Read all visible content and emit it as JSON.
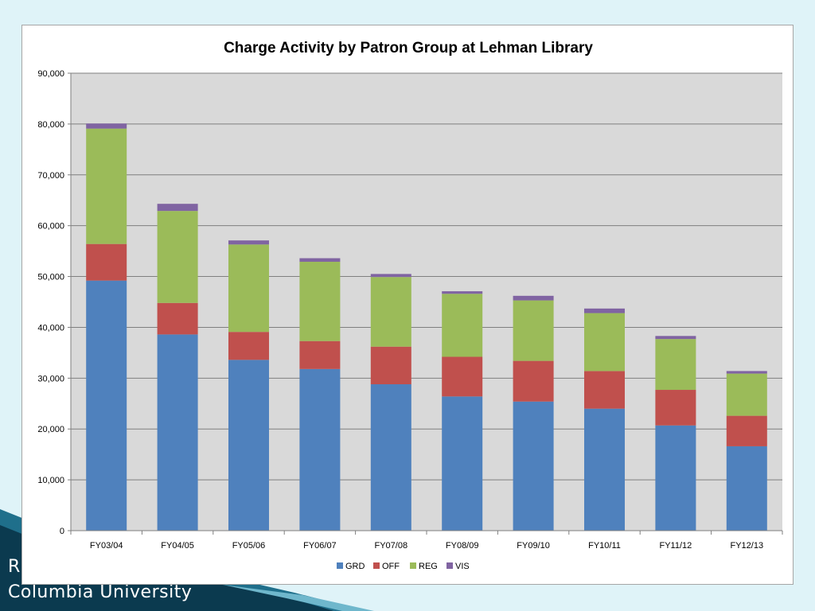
{
  "slide": {
    "footer_line_1": "R",
    "footer_line_2": "Columbia University",
    "colors": {
      "background": "#dff3f8",
      "accent_dark": "#0b3a4f",
      "accent_mid": "#1f6f8b"
    }
  },
  "chart_data": {
    "type": "bar",
    "stacked": true,
    "title": "Charge Activity by Patron Group at Lehman Library",
    "xlabel": "",
    "ylabel": "",
    "categories": [
      "FY03/04",
      "FY04/05",
      "FY05/06",
      "FY06/07",
      "FY07/08",
      "FY08/09",
      "FY09/10",
      "FY10/11",
      "FY11/12",
      "FY12/13"
    ],
    "series": [
      {
        "name": "GRD",
        "color": "#4f81bd",
        "values": [
          49200,
          38600,
          33600,
          31800,
          28800,
          26400,
          25400,
          24000,
          20700,
          16600
        ]
      },
      {
        "name": "OFF",
        "color": "#c0504d",
        "values": [
          7200,
          6200,
          5500,
          5500,
          7400,
          7800,
          8000,
          7400,
          7000,
          6000
        ]
      },
      {
        "name": "REG",
        "color": "#9bbb59",
        "values": [
          22700,
          18100,
          17200,
          15600,
          13700,
          12400,
          11900,
          11400,
          10000,
          8300
        ]
      },
      {
        "name": "VIS",
        "color": "#8064a2",
        "values": [
          1000,
          1400,
          800,
          700,
          600,
          500,
          900,
          900,
          600,
          500
        ]
      }
    ],
    "ylim": [
      0,
      90000
    ],
    "yticks": [
      0,
      10000,
      20000,
      30000,
      40000,
      50000,
      60000,
      70000,
      80000,
      90000
    ],
    "ytick_labels": [
      "0",
      "10,000",
      "20,000",
      "30,000",
      "40,000",
      "50,000",
      "60,000",
      "70,000",
      "80,000",
      "90,000"
    ],
    "grid": true,
    "legend_position": "bottom",
    "plot_background": "#d9d9d9"
  }
}
